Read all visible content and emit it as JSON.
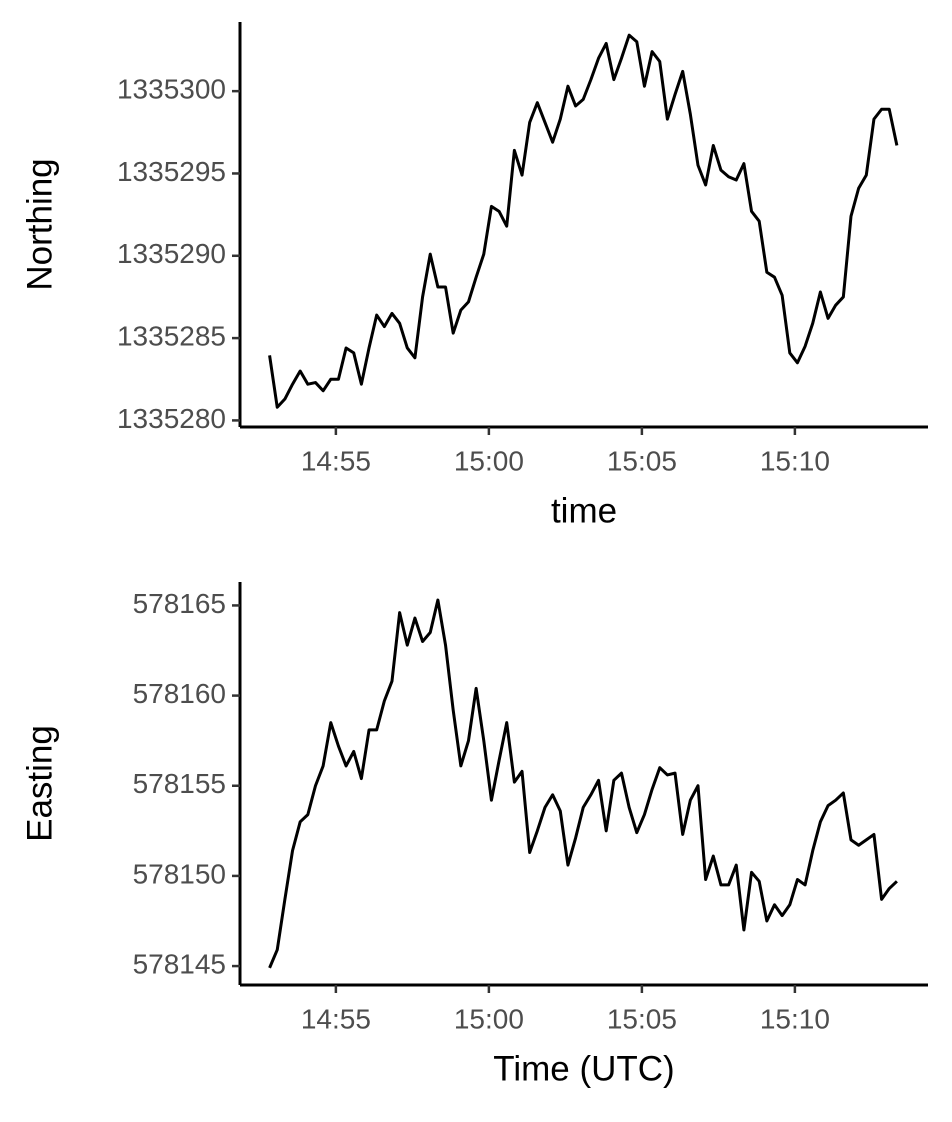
{
  "chart_data": [
    {
      "type": "line",
      "xlabel": "time",
      "ylabel": "Northing",
      "color": "#000000",
      "x": [
        "14:52:50",
        "14:53:05",
        "14:53:20",
        "14:53:35",
        "14:53:50",
        "14:54:05",
        "14:54:20",
        "14:54:35",
        "14:54:50",
        "14:55:05",
        "14:55:20",
        "14:55:35",
        "14:55:50",
        "14:56:05",
        "14:56:20",
        "14:56:35",
        "14:56:50",
        "14:57:05",
        "14:57:20",
        "14:57:35",
        "14:57:50",
        "14:58:05",
        "14:58:20",
        "14:58:35",
        "14:58:50",
        "14:59:05",
        "14:59:20",
        "14:59:35",
        "14:59:50",
        "15:00:05",
        "15:00:20",
        "15:00:35",
        "15:00:50",
        "15:01:05",
        "15:01:20",
        "15:01:35",
        "15:01:50",
        "15:02:05",
        "15:02:20",
        "15:02:35",
        "15:02:50",
        "15:03:05",
        "15:03:20",
        "15:03:35",
        "15:03:50",
        "15:04:05",
        "15:04:20",
        "15:04:35",
        "15:04:50",
        "15:05:05",
        "15:05:20",
        "15:05:35",
        "15:05:50",
        "15:06:05",
        "15:06:20",
        "15:06:35",
        "15:06:50",
        "15:07:05",
        "15:07:20",
        "15:07:35",
        "15:07:50",
        "15:08:05",
        "15:08:20",
        "15:08:35",
        "15:08:50",
        "15:09:05",
        "15:09:20",
        "15:09:35",
        "15:09:50",
        "15:10:05",
        "15:10:20",
        "15:10:35",
        "15:10:50",
        "15:11:05",
        "15:11:20",
        "15:11:35",
        "15:11:50",
        "15:12:05",
        "15:12:20",
        "15:12:35",
        "15:12:50",
        "15:13:05",
        "15:13:20"
      ],
      "values": [
        1335283.95,
        1335280.8,
        1335281.3,
        1335282.2,
        1335283.0,
        1335282.2,
        1335282.3,
        1335281.8,
        1335282.5,
        1335282.5,
        1335284.4,
        1335284.1,
        1335282.2,
        1335284.4,
        1335286.4,
        1335285.7,
        1335286.5,
        1335285.9,
        1335284.4,
        1335283.8,
        1335287.5,
        1335290.1,
        1335288.1,
        1335288.1,
        1335285.3,
        1335286.7,
        1335287.2,
        1335288.7,
        1335290.1,
        1335293.0,
        1335292.7,
        1335291.8,
        1335296.4,
        1335294.9,
        1335298.1,
        1335299.3,
        1335298.1,
        1335296.9,
        1335298.3,
        1335300.3,
        1335299.1,
        1335299.5,
        1335300.7,
        1335302.0,
        1335302.9,
        1335300.7,
        1335302.0,
        1335303.4,
        1335303.0,
        1335300.3,
        1335302.4,
        1335301.8,
        1335298.3,
        1335299.8,
        1335301.2,
        1335298.6,
        1335295.5,
        1335294.3,
        1335296.7,
        1335295.2,
        1335294.8,
        1335294.6,
        1335295.6,
        1335292.7,
        1335292.1,
        1335289.0,
        1335288.7,
        1335287.6,
        1335284.1,
        1335283.5,
        1335284.5,
        1335285.9,
        1335287.8,
        1335286.2,
        1335287.0,
        1335287.5,
        1335292.4,
        1335294.1,
        1335294.9,
        1335298.3,
        1335298.9,
        1335298.9,
        1335296.7
      ],
      "xlim": [
        "14:51:52",
        "15:14:21"
      ],
      "xticks": [
        "14:55",
        "15:00",
        "15:05",
        "15:10"
      ],
      "ylim": [
        1335279.6,
        1335304.2
      ],
      "yticks": [
        1335280,
        1335285,
        1335290,
        1335295,
        1335300
      ]
    },
    {
      "type": "line",
      "xlabel": "Time (UTC)",
      "ylabel": "Easting",
      "color": "#000000",
      "x": [
        "14:52:50",
        "14:53:05",
        "14:53:20",
        "14:53:35",
        "14:53:50",
        "14:54:05",
        "14:54:20",
        "14:54:35",
        "14:54:50",
        "14:55:05",
        "14:55:20",
        "14:55:35",
        "14:55:50",
        "14:56:05",
        "14:56:20",
        "14:56:35",
        "14:56:50",
        "14:57:05",
        "14:57:20",
        "14:57:35",
        "14:57:50",
        "14:58:05",
        "14:58:20",
        "14:58:35",
        "14:58:50",
        "14:59:05",
        "14:59:20",
        "14:59:35",
        "14:59:50",
        "15:00:05",
        "15:00:20",
        "15:00:35",
        "15:00:50",
        "15:01:05",
        "15:01:20",
        "15:01:35",
        "15:01:50",
        "15:02:05",
        "15:02:20",
        "15:02:35",
        "15:02:50",
        "15:03:05",
        "15:03:20",
        "15:03:35",
        "15:03:50",
        "15:04:05",
        "15:04:20",
        "15:04:35",
        "15:04:50",
        "15:05:05",
        "15:05:20",
        "15:05:35",
        "15:05:50",
        "15:06:05",
        "15:06:20",
        "15:06:35",
        "15:06:50",
        "15:07:05",
        "15:07:20",
        "15:07:35",
        "15:07:50",
        "15:08:05",
        "15:08:20",
        "15:08:35",
        "15:08:50",
        "15:09:05",
        "15:09:20",
        "15:09:35",
        "15:09:50",
        "15:10:05",
        "15:10:20",
        "15:10:35",
        "15:10:50",
        "15:11:05",
        "15:11:20",
        "15:11:35",
        "15:11:50",
        "15:12:05",
        "15:12:20",
        "15:12:35",
        "15:12:50",
        "15:13:05",
        "15:13:20"
      ],
      "values": [
        578144.9,
        578145.9,
        578148.7,
        578151.4,
        578153.0,
        578153.4,
        578155.0,
        578156.1,
        578158.5,
        578157.2,
        578156.1,
        578156.9,
        578155.4,
        578158.1,
        578158.1,
        578159.7,
        578160.8,
        578164.6,
        578162.8,
        578164.3,
        578163.0,
        578163.5,
        578165.3,
        578162.8,
        578159.2,
        578156.1,
        578157.5,
        578160.4,
        578157.5,
        578154.2,
        578156.4,
        578158.5,
        578155.2,
        578155.8,
        578151.3,
        578152.5,
        578153.8,
        578154.5,
        578153.6,
        578150.6,
        578152.1,
        578153.8,
        578154.5,
        578155.3,
        578152.5,
        578155.3,
        578155.7,
        578153.8,
        578152.4,
        578153.4,
        578154.8,
        578156.0,
        578155.6,
        578155.7,
        578152.3,
        578154.2,
        578155.0,
        578149.8,
        578151.1,
        578149.5,
        578149.5,
        578150.6,
        578147.0,
        578150.2,
        578149.7,
        578147.5,
        578148.4,
        578147.8,
        578148.4,
        578149.8,
        578149.5,
        578151.4,
        578153.0,
        578153.9,
        578154.2,
        578154.6,
        578152.0,
        578151.7,
        578152.0,
        578152.3,
        578148.7,
        578149.3,
        578149.7
      ],
      "xlim": [
        "14:51:52",
        "15:14:21"
      ],
      "xticks": [
        "14:55",
        "15:00",
        "15:05",
        "15:10"
      ],
      "ylim": [
        578143.95,
        578166.3
      ],
      "yticks": [
        578145,
        578150,
        578155,
        578160,
        578165
      ]
    }
  ]
}
